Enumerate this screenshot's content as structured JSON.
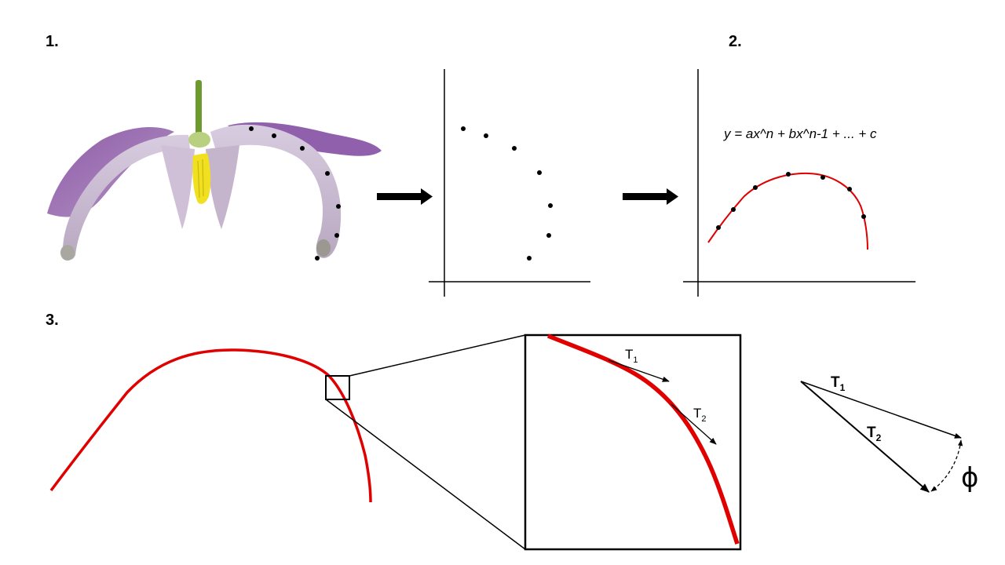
{
  "steps": {
    "step1": "1.",
    "step2": "2.",
    "step3": "3."
  },
  "equation": "y = ax^n + bx^n-1 + ... + c",
  "vectors": {
    "t1_base": "T",
    "t1_sub": "1",
    "t2_base": "T",
    "t2_sub": "2",
    "angle_symbol": "ϕ"
  },
  "colors": {
    "curve": "#e00000",
    "ink": "#000000",
    "petal_purple": "#9b6ab0",
    "petal_light": "#d6c8dc",
    "anther_yellow": "#f0e020",
    "stem_green": "#6c9a2e"
  },
  "icons": {
    "arrow": "right-arrow-icon",
    "flower": "flower-photo"
  }
}
